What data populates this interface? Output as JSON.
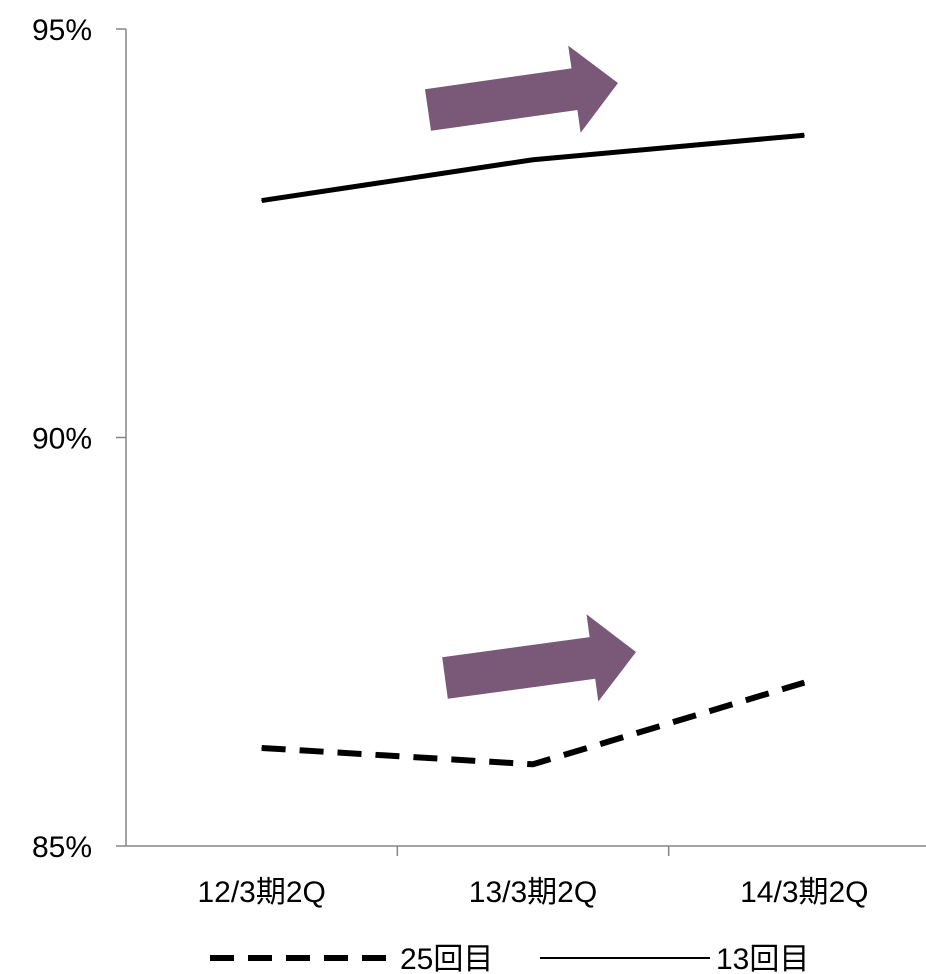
{
  "chart_data": {
    "type": "line",
    "title": "",
    "xlabel": "",
    "ylabel": "",
    "categories": [
      "12/3期2Q",
      "13/3期2Q",
      "14/3期2Q"
    ],
    "y_ticks": [
      "95%",
      "90%",
      "85%"
    ],
    "ylim": [
      85,
      95
    ],
    "grid": false,
    "legend_position": "bottom",
    "series": [
      {
        "name": "25回目",
        "style": "dashed",
        "color": "#000000",
        "values": [
          86.2,
          86.0,
          87.0
        ]
      },
      {
        "name": "13回目",
        "style": "solid",
        "color": "#000000",
        "values": [
          92.9,
          93.4,
          93.7
        ]
      }
    ],
    "annotations": [
      {
        "shape": "arrow",
        "color": "#7a5878",
        "near_series": "13回目"
      },
      {
        "shape": "arrow",
        "color": "#7a5878",
        "near_series": "25回目"
      }
    ]
  }
}
